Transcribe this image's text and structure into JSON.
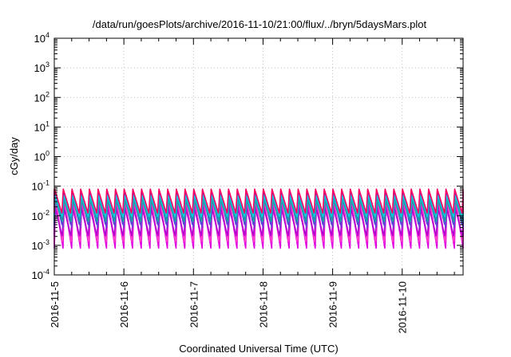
{
  "chart_data": {
    "type": "line",
    "title": "/data/run/goesPlots/archive/2016-11-10/21:00/flux/../bryn/5daysMars.plot",
    "xlabel": "Coordinated Universal Time (UTC)",
    "ylabel": "cGy/day",
    "yscale": "log",
    "ylim": [
      0.0001,
      10000
    ],
    "y_ticks": [
      {
        "value": 0.0001,
        "base": "10",
        "exp": "-4"
      },
      {
        "value": 0.001,
        "base": "10",
        "exp": "-3"
      },
      {
        "value": 0.01,
        "base": "10",
        "exp": "-2"
      },
      {
        "value": 0.1,
        "base": "10",
        "exp": "-1"
      },
      {
        "value": 1,
        "base": "10",
        "exp": "0"
      },
      {
        "value": 10,
        "base": "10",
        "exp": "1"
      },
      {
        "value": 100,
        "base": "10",
        "exp": "2"
      },
      {
        "value": 1000,
        "base": "10",
        "exp": "3"
      },
      {
        "value": 10000,
        "base": "10",
        "exp": "4"
      }
    ],
    "xlim": [
      "2016-11-05T00:00",
      "2016-11-10T21:00"
    ],
    "x_ticks": [
      "2016-11-5",
      "2016-11-6",
      "2016-11-7",
      "2016-11-8",
      "2016-11-9",
      "2016-11-10"
    ],
    "grid": true,
    "legend": "none",
    "period_hours": 3,
    "series": [
      {
        "color": "#e000e0",
        "peak": 0.03,
        "trough": 0.0008
      },
      {
        "color": "#ff40c8",
        "peak": 0.045,
        "trough": 0.0012
      },
      {
        "color": "#b000d0",
        "peak": 0.02,
        "trough": 0.002
      },
      {
        "color": "#2040e0",
        "peak": 0.07,
        "trough": 0.005
      },
      {
        "color": "#6a3fd8",
        "peak": 0.06,
        "trough": 0.004
      },
      {
        "color": "#20a0a0",
        "peak": 0.035,
        "trough": 0.006
      },
      {
        "color": "#00c8e0",
        "peak": 0.05,
        "trough": 0.009
      },
      {
        "color": "#ff0060",
        "peak": 0.08,
        "trough": 0.012
      }
    ]
  }
}
